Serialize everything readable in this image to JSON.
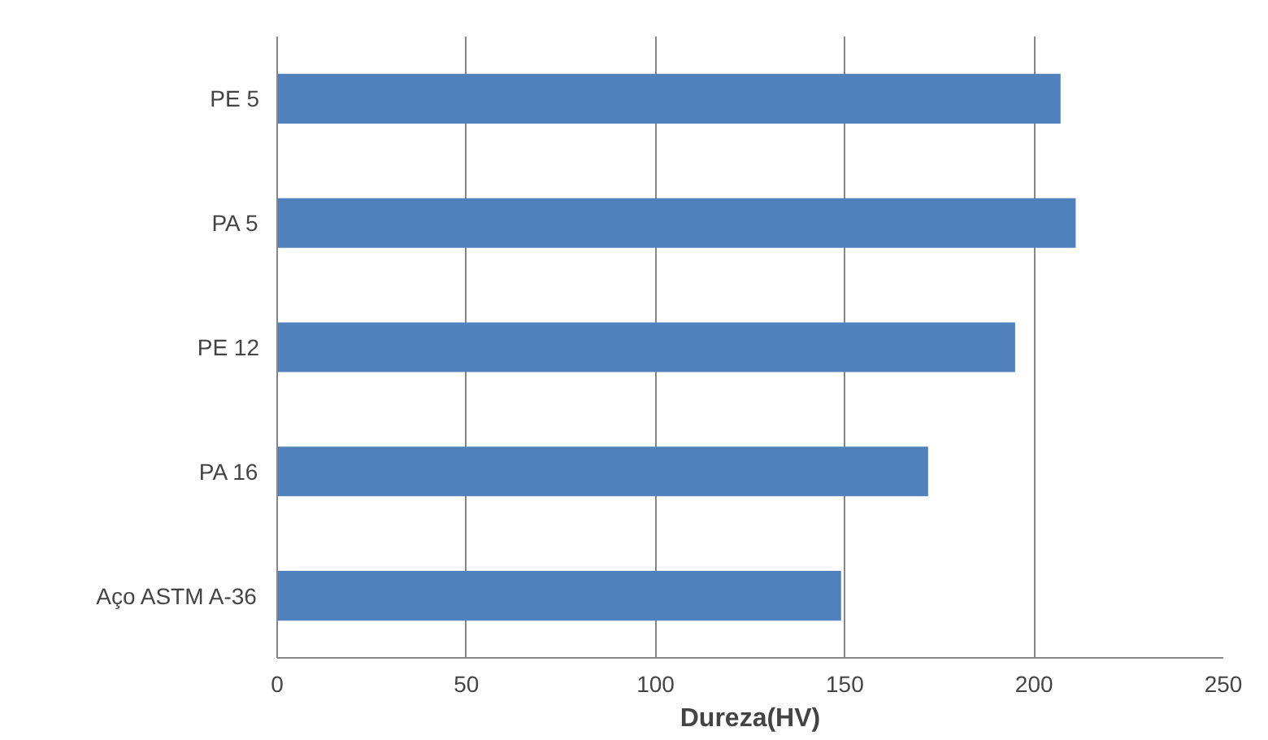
{
  "chart_data": {
    "type": "bar",
    "orientation": "horizontal",
    "xlabel": "Dureza(HV)",
    "categories": [
      "PE 5",
      "PA 5",
      "PE 12",
      "PA 16",
      "Aço ASTM A-36"
    ],
    "values": [
      207,
      211,
      195,
      172,
      149
    ],
    "color": "#4f81bd",
    "xlim": [
      0,
      250
    ],
    "xticks": [
      0,
      50,
      100,
      150,
      200,
      250
    ],
    "grid": "x"
  }
}
